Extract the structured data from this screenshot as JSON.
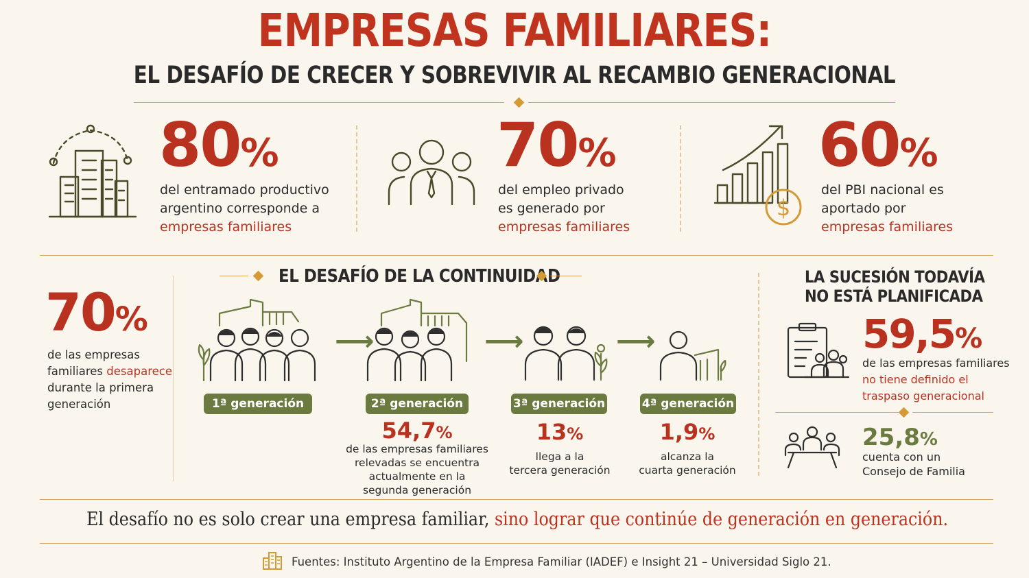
{
  "header": {
    "title": "EMPRESAS FAMILIARES:",
    "subtitle": "EL DESAFÍO DE CRECER Y SOBREVIVIR AL RECAMBIO GENERACIONAL"
  },
  "stats": [
    {
      "value": "80",
      "pct": "%",
      "line1": "del entramado productivo",
      "line2": "argentino corresponde a",
      "highlight": "empresas familiares",
      "icon": "buildings-icon"
    },
    {
      "value": "70",
      "pct": "%",
      "line1": "del empleo privado",
      "line2": "es generado por",
      "highlight": "empresas familiares",
      "icon": "people-group-icon"
    },
    {
      "value": "60",
      "pct": "%",
      "line1": "del PBI nacional es",
      "line2": "aportado por",
      "highlight": "empresas familiares",
      "icon": "growth-chart-icon"
    }
  ],
  "continuity": {
    "title": "EL DESAFÍO DE LA CONTINUIDAD",
    "left": {
      "value": "70",
      "pct": "%",
      "line1": "de las empresas",
      "line2a": "familiares ",
      "line2b": "desaparece",
      "line3": "durante la primera",
      "line4": "generación"
    },
    "generations": [
      {
        "label": "1ª generación",
        "value": "",
        "pct": "",
        "lines": []
      },
      {
        "label": "2ª generación",
        "value": "54,7",
        "pct": "%",
        "lines": [
          "de las empresas familiares",
          "relevadas se encuentra",
          "actualmente en la",
          "segunda generación"
        ]
      },
      {
        "label": "3ª generación",
        "value": "13",
        "pct": "%",
        "lines": [
          "llega a la",
          "tercera generación"
        ]
      },
      {
        "label": "4ª generación",
        "value": "1,9",
        "pct": "%",
        "lines": [
          "alcanza la",
          "cuarta generación"
        ]
      }
    ]
  },
  "succession": {
    "title_line1": "LA SUCESIÓN TODAVÍA",
    "title_line2": "NO ESTÁ PLANIFICADA",
    "stat1": {
      "value": "59,5",
      "pct": "%",
      "line1": "de las empresas familiares",
      "line2": "no tiene definido el",
      "line3": "traspaso generacional"
    },
    "stat2": {
      "value": "25,8",
      "pct": "%",
      "line1": "cuenta con un",
      "line2": "Consejo de Familia"
    }
  },
  "footer": {
    "quote_part1": "El desafío no es solo crear una empresa familiar, ",
    "quote_part2": "sino lograr que continúe de generación en generación.",
    "sources": "Fuentes: Instituto Argentino de la Empresa Familiar (IADEF) e Insight 21 – Universidad Siglo 21."
  },
  "colors": {
    "red": "#b8321f",
    "green": "#6b7a3e",
    "gold": "#d49a35",
    "background": "#faf6ee"
  }
}
